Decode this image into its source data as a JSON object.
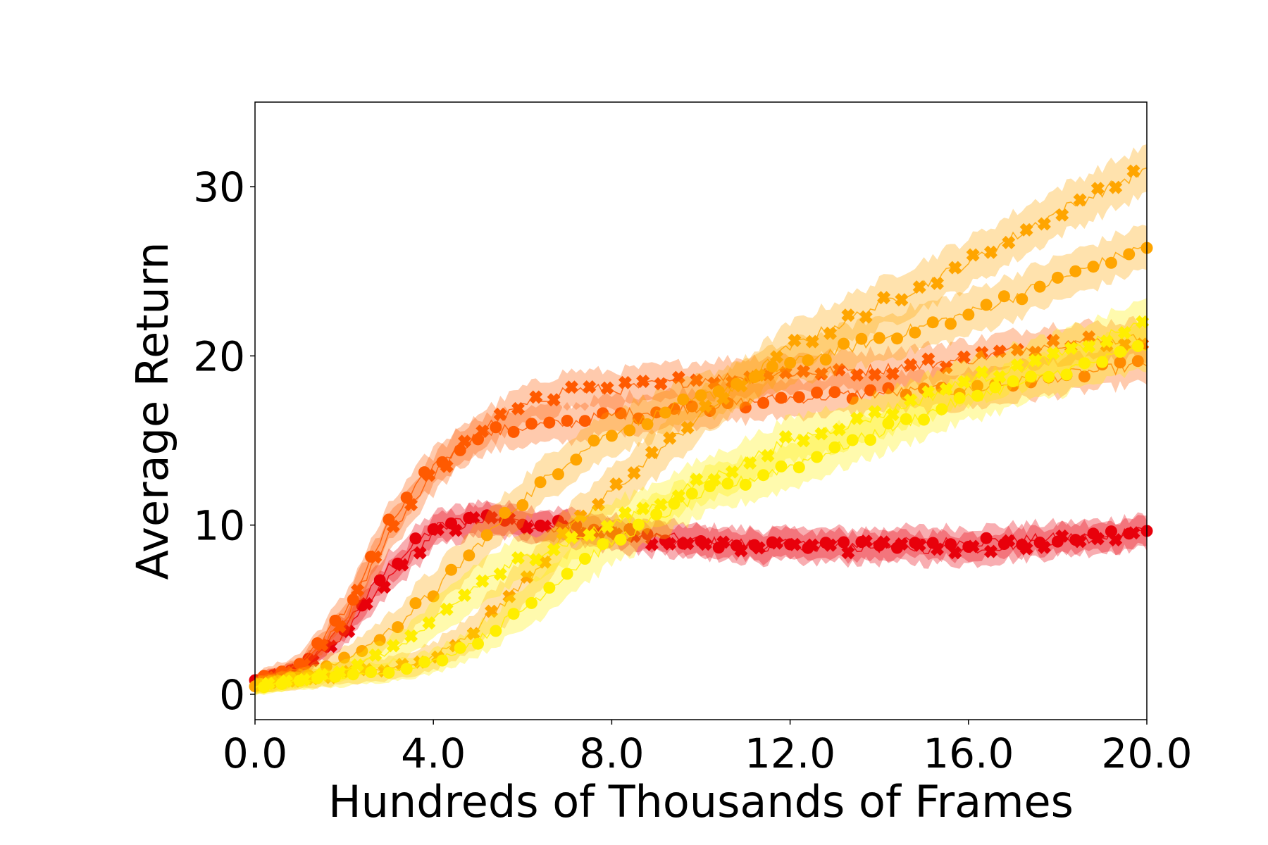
{
  "chart_data": {
    "type": "line",
    "title": "",
    "xlabel": "Hundreds of Thousands of Frames",
    "ylabel": "Average Return",
    "xlim": [
      0,
      20
    ],
    "ylim": [
      -1.5,
      35
    ],
    "xticks": [
      0,
      4,
      8,
      12,
      16,
      20
    ],
    "xtick_labels": [
      "0.0",
      "4.0",
      "8.0",
      "12.0",
      "16.0",
      "20.0"
    ],
    "yticks": [
      0,
      10,
      20,
      30
    ],
    "ytick_labels": [
      "0",
      "10",
      "20",
      "30"
    ],
    "legend": null,
    "grid": false,
    "series": [
      {
        "name": "red-circle",
        "color": "#e8000b",
        "marker": "circle",
        "band": 0.9,
        "x": [
          0,
          1,
          2,
          3,
          4,
          5,
          6,
          7,
          8,
          10,
          12,
          14,
          16,
          18,
          20
        ],
        "y": [
          0.8,
          1.5,
          4.0,
          7.5,
          9.8,
          10.5,
          10.2,
          10.0,
          9.6,
          9.0,
          8.8,
          8.9,
          9.0,
          9.2,
          9.6
        ]
      },
      {
        "name": "red-cross",
        "color": "#e8000b",
        "marker": "cross",
        "band": 0.9,
        "x": [
          0,
          1,
          2,
          3,
          4,
          5,
          6,
          7,
          8,
          10,
          12,
          14,
          16,
          18,
          20
        ],
        "y": [
          0.7,
          1.4,
          3.5,
          6.8,
          9.5,
          10.3,
          10.1,
          9.8,
          9.4,
          8.9,
          8.7,
          8.7,
          8.6,
          9.1,
          9.6
        ]
      },
      {
        "name": "orange-red-circle",
        "color": "#ff5a00",
        "marker": "circle",
        "band": 1.1,
        "x": [
          0,
          1,
          2,
          3,
          4,
          5,
          6,
          7,
          8,
          10,
          12,
          14,
          16,
          18,
          20
        ],
        "y": [
          0.8,
          1.8,
          4.8,
          10.0,
          13.5,
          15.3,
          15.8,
          16.0,
          16.5,
          17.0,
          17.5,
          17.8,
          18.0,
          18.8,
          19.5
        ]
      },
      {
        "name": "orange-red-cross",
        "color": "#ff5a00",
        "marker": "cross",
        "band": 1.1,
        "x": [
          0,
          1,
          2,
          3,
          4,
          5,
          6,
          7,
          8,
          10,
          12,
          14,
          16,
          18,
          20
        ],
        "y": [
          0.7,
          1.5,
          4.3,
          9.5,
          13.0,
          15.5,
          17.0,
          18.0,
          18.0,
          18.6,
          19.0,
          19.2,
          19.8,
          20.8,
          21.0
        ]
      },
      {
        "name": "orange-circle",
        "color": "#ffa500",
        "marker": "circle",
        "band": 1.3,
        "x": [
          0,
          1,
          2,
          3,
          4,
          5,
          6,
          7,
          8,
          10,
          12,
          14,
          16,
          18,
          20
        ],
        "y": [
          0.5,
          1.0,
          2.0,
          3.7,
          6.0,
          8.8,
          11.5,
          13.8,
          15.5,
          17.5,
          19.5,
          21.0,
          22.5,
          24.5,
          26.5
        ]
      },
      {
        "name": "orange-cross",
        "color": "#ffa500",
        "marker": "cross",
        "band": 1.4,
        "x": [
          0,
          1,
          2,
          3,
          4,
          5,
          6,
          7,
          8,
          10,
          12,
          14,
          16,
          18,
          20
        ],
        "y": [
          0.5,
          0.9,
          1.2,
          1.5,
          2.2,
          4.0,
          6.5,
          9.5,
          12.0,
          16.5,
          20.5,
          23.0,
          25.5,
          28.5,
          31.0
        ]
      },
      {
        "name": "yellow-circle",
        "color": "#ffee00",
        "marker": "circle",
        "band": 1.3,
        "x": [
          0,
          1,
          2,
          3,
          4,
          5,
          6,
          7,
          8,
          10,
          12,
          14,
          16,
          18,
          20
        ],
        "y": [
          0.4,
          0.8,
          1.0,
          1.4,
          1.9,
          3.2,
          5.0,
          7.2,
          9.0,
          11.8,
          13.5,
          15.5,
          17.5,
          19.0,
          20.5
        ]
      },
      {
        "name": "yellow-cross",
        "color": "#ffee00",
        "marker": "cross",
        "band": 1.3,
        "x": [
          0,
          1,
          2,
          3,
          4,
          5,
          6,
          7,
          8,
          10,
          12,
          14,
          16,
          18,
          20
        ],
        "y": [
          0.4,
          0.9,
          1.5,
          2.5,
          4.2,
          6.5,
          8.0,
          9.0,
          10.0,
          12.5,
          15.0,
          16.5,
          18.5,
          20.0,
          22.0
        ]
      }
    ]
  }
}
